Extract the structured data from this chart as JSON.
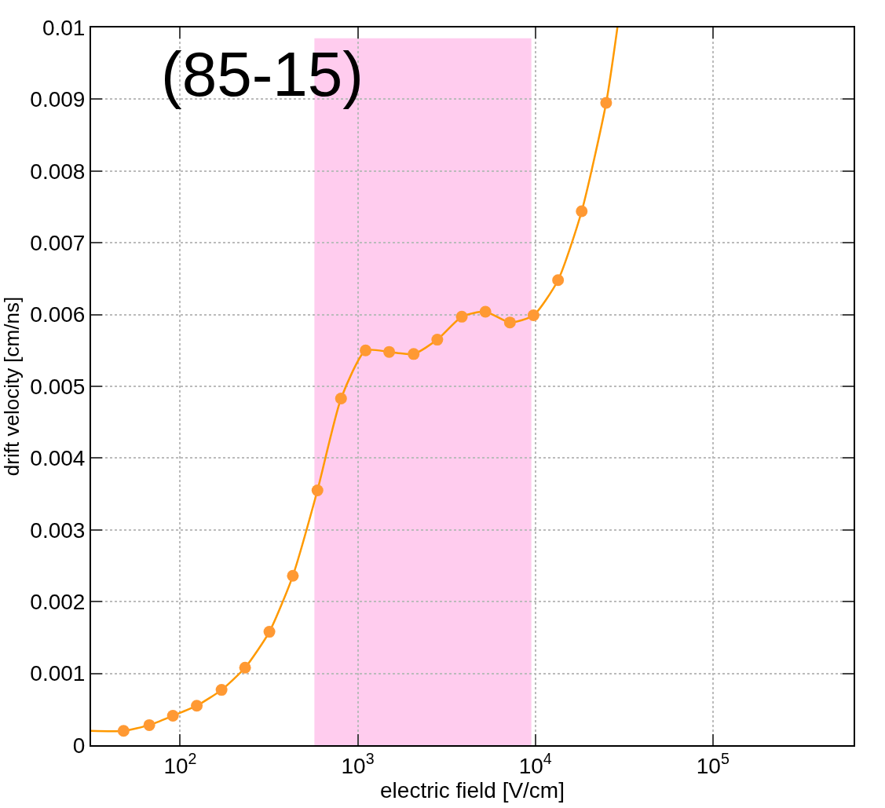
{
  "chart_data": {
    "type": "scatter",
    "xlabel": "electric field [V/cm]",
    "ylabel": "drift velocity [cm/ns]",
    "annotations": [
      "(85-15)"
    ],
    "log": "x",
    "grid": true,
    "marker": "circle",
    "xlim": [
      31.5,
      620000
    ],
    "xticks": [
      {
        "value": 100,
        "label": "10$^{2}$"
      },
      {
        "value": 1000,
        "label": "10$^{3}$"
      },
      {
        "value": 10000,
        "label": "10$^{4}$"
      },
      {
        "value": 100000,
        "label": "10$^{5}$"
      }
    ],
    "ylim": [
      0,
      0.01
    ],
    "yticks": [
      0,
      0.001,
      0.002,
      0.003,
      0.004,
      0.005,
      0.006,
      0.007,
      0.008,
      0.009,
      0.01
    ],
    "bands": [
      {
        "axis": "x",
        "from": 570,
        "to": 9500,
        "color": "#ffccee"
      }
    ],
    "series": [
      {
        "type": "line",
        "color": "#ff9900",
        "marker": "none",
        "x": [
          31.5,
          48,
          67,
          91,
          124,
          171,
          232,
          318,
          431,
          593,
          805,
          1107,
          1503,
          2065,
          2805,
          3855,
          5236,
          7194,
          9775,
          13430,
          18250,
          25060,
          29000
        ],
        "values": [
          0.0002,
          0.0002,
          0.00028,
          0.00041,
          0.00055,
          0.00077,
          0.00108,
          0.00158,
          0.00236,
          0.00355,
          0.00483,
          0.0055,
          0.00548,
          0.00545,
          0.00565,
          0.00597,
          0.00604,
          0.00589,
          0.00599,
          0.00648,
          0.00744,
          0.00895,
          0.01
        ]
      },
      {
        "color": "#ff9933",
        "x": [
          48,
          67,
          91,
          124,
          171,
          232,
          318,
          431,
          593,
          805,
          1107,
          1503,
          2065,
          2805,
          3855,
          5236,
          7194,
          9775,
          13430,
          18250,
          25060
        ],
        "values": [
          0.0002,
          0.00028,
          0.00041,
          0.00055,
          0.00077,
          0.00108,
          0.00158,
          0.00236,
          0.00355,
          0.00483,
          0.0055,
          0.00548,
          0.00545,
          0.00565,
          0.00597,
          0.00604,
          0.00589,
          0.00599,
          0.00648,
          0.00744,
          0.00895
        ]
      }
    ]
  }
}
